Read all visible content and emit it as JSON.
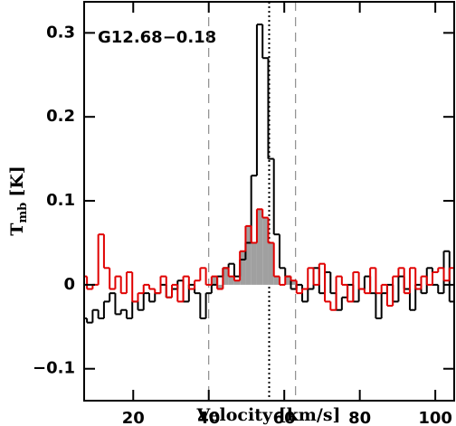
{
  "chart_data": {
    "type": "step",
    "annotation": "G12.68−0.18",
    "xlabel": "Velocity [km/s]",
    "ylabel": {
      "main": "T",
      "sub": "mb",
      "unit": "[K]"
    },
    "xlim": [
      7,
      105
    ],
    "ylim": [
      -0.138,
      0.337
    ],
    "xticks": [
      20,
      40,
      60,
      80,
      100
    ],
    "yticks": [
      {
        "value": -0.1,
        "label": "−0.1"
      },
      0,
      0.1,
      0.2,
      0.3
    ],
    "x": [
      7,
      8.5,
      10,
      11.5,
      13,
      14.5,
      16,
      17.5,
      19,
      20.5,
      22,
      23.5,
      25,
      26.5,
      28,
      29.5,
      31,
      32.5,
      34,
      35.5,
      37,
      38.5,
      40,
      41.5,
      43,
      44.5,
      46,
      47.5,
      49,
      50.5,
      52,
      53.5,
      55,
      56.5,
      58,
      59.5,
      61,
      62.5,
      64,
      65.5,
      67,
      68.5,
      70,
      71.5,
      73,
      74.5,
      76,
      77.5,
      79,
      80.5,
      82,
      83.5,
      85,
      86.5,
      88,
      89.5,
      91,
      92.5,
      94,
      95.5,
      97,
      98.5,
      100,
      101.5,
      103,
      104.5
    ],
    "series": [
      {
        "color": "#000000",
        "values": [
          -0.04,
          -0.045,
          -0.03,
          -0.04,
          -0.02,
          -0.01,
          -0.035,
          -0.03,
          -0.04,
          -0.02,
          -0.03,
          -0.01,
          -0.02,
          -0.01,
          0.0,
          -0.015,
          -0.005,
          0.005,
          -0.02,
          0.0,
          -0.01,
          -0.04,
          -0.01,
          0.0,
          0.01,
          0.02,
          0.025,
          0.01,
          0.03,
          0.05,
          0.13,
          0.31,
          0.27,
          0.15,
          0.06,
          0.02,
          0.01,
          -0.005,
          0.0,
          -0.02,
          -0.005,
          0.02,
          -0.01,
          0.015,
          -0.01,
          -0.03,
          -0.015,
          0.0,
          -0.02,
          -0.005,
          0.01,
          -0.01,
          -0.04,
          -0.01,
          0.0,
          -0.02,
          0.01,
          -0.005,
          -0.03,
          0.0,
          -0.01,
          0.02,
          0.0,
          -0.01,
          0.04,
          -0.02
        ]
      },
      {
        "color": "#e00000",
        "fill_color": "#a0a0a0",
        "values": [
          0.01,
          -0.005,
          0.0,
          0.06,
          0.02,
          -0.005,
          0.01,
          -0.01,
          0.015,
          -0.02,
          -0.01,
          0.0,
          -0.005,
          -0.01,
          0.01,
          -0.015,
          0.0,
          -0.02,
          0.01,
          -0.005,
          0.005,
          0.02,
          0.0,
          0.01,
          -0.005,
          0.02,
          0.01,
          0.005,
          0.04,
          0.07,
          0.05,
          0.09,
          0.08,
          0.05,
          0.01,
          0.0,
          0.01,
          0.005,
          -0.01,
          -0.005,
          0.02,
          0.0,
          0.025,
          -0.02,
          -0.03,
          0.01,
          0.0,
          -0.02,
          0.015,
          -0.005,
          -0.01,
          0.02,
          -0.01,
          0.0,
          -0.025,
          0.01,
          0.02,
          -0.01,
          0.02,
          -0.005,
          0.01,
          0.0,
          0.015,
          0.02,
          0.005,
          0.02
        ]
      }
    ],
    "vlines": [
      {
        "x": 40,
        "style": "dashed"
      },
      {
        "x": 56,
        "style": "dotted"
      },
      {
        "x": 63,
        "style": "dashed"
      }
    ]
  }
}
